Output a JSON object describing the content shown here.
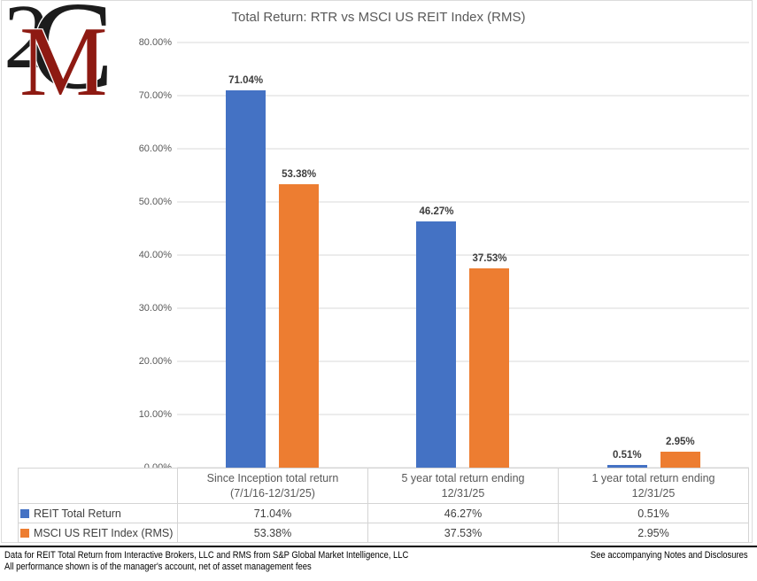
{
  "logo": {
    "digit": "2",
    "letter_c": "C",
    "letter_m": "M",
    "red": "#8e1a12"
  },
  "chart_data": {
    "type": "bar",
    "title": "Total Return: RTR vs MSCI US REIT Index (RMS)",
    "categories": [
      "Since Inception total return\n(7/1/16-12/31/25)",
      "5 year total return ending\n12/31/25",
      "1 year total return ending\n12/31/25"
    ],
    "series": [
      {
        "name": "REIT Total Return",
        "color": "#4472C4",
        "values": [
          71.04,
          46.27,
          0.51
        ],
        "labels": [
          "71.04%",
          "46.27%",
          "0.51%"
        ]
      },
      {
        "name": "MSCI US REIT Index (RMS)",
        "color": "#ED7D31",
        "values": [
          53.38,
          37.53,
          2.95
        ],
        "labels": [
          "53.38%",
          "37.53%",
          "2.95%"
        ]
      }
    ],
    "ylim": [
      0,
      80
    ],
    "y_ticks": [
      "80.00%",
      "70.00%",
      "60.00%",
      "50.00%",
      "40.00%",
      "30.00%",
      "20.00%",
      "10.00%",
      "0.00%"
    ],
    "grid": true,
    "legend_position": "bottom-table",
    "grid_color": "#d9d9d9",
    "axis_text_color": "#595959"
  },
  "footer": {
    "left_line1": "Data for REIT Total Return from Interactive Brokers, LLC and RMS from S&P Global Market Intelligence, LLC",
    "left_line2": "All performance shown is of the manager's account, net of asset management fees",
    "right_note": "See accompanying Notes and Disclosures"
  }
}
